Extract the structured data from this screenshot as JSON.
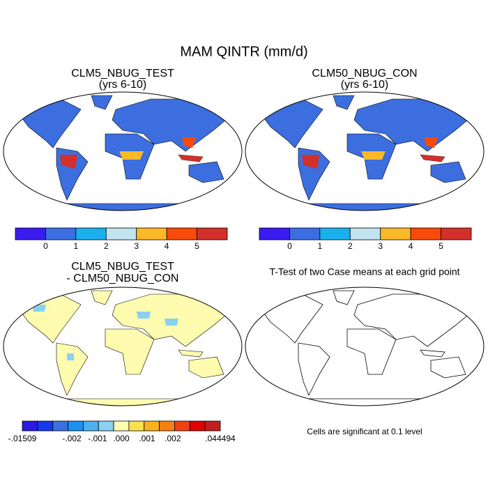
{
  "title": "MAM QINTR (mm/d)",
  "panels": [
    {
      "title": "CLM5_NBUG_TEST",
      "subtitle": "(yrs 6-10)",
      "colorbar": {
        "colors": [
          "#3a1cf0",
          "#3d6ee0",
          "#1ab0ec",
          "#c0e4f0",
          "#fbb829",
          "#f94a0a",
          "#d2302a"
        ],
        "labels": [
          "0",
          "1",
          "2",
          "3",
          "4",
          "5"
        ]
      }
    },
    {
      "title": "CLM50_NBUG_CON",
      "subtitle": "(yrs 6-10)",
      "colorbar": {
        "colors": [
          "#3a1cf0",
          "#3d6ee0",
          "#1ab0ec",
          "#c0e4f0",
          "#fbb829",
          "#f94a0a",
          "#d2302a"
        ],
        "labels": [
          "0",
          "1",
          "2",
          "3",
          "4",
          "5"
        ]
      }
    },
    {
      "title": "CLM5_NBUG_TEST",
      "subtitle": "- CLM50_NBUG_CON",
      "colorbar": {
        "colors": [
          "#2a1ae0",
          "#1838f0",
          "#3a70e0",
          "#1b90f0",
          "#4db0f0",
          "#8ad0f0",
          "#fffcb0",
          "#fde050",
          "#fbb020",
          "#f88010",
          "#f04010",
          "#e00000",
          "#c02020"
        ],
        "labels": [
          "-.01509",
          "-.002",
          "-.001",
          ".000",
          ".001",
          ".002",
          ".044494"
        ]
      }
    },
    {
      "title": "T-Test of two Case means at each grid point"
    }
  ],
  "note": "Cells are significant at 0.1 level"
}
